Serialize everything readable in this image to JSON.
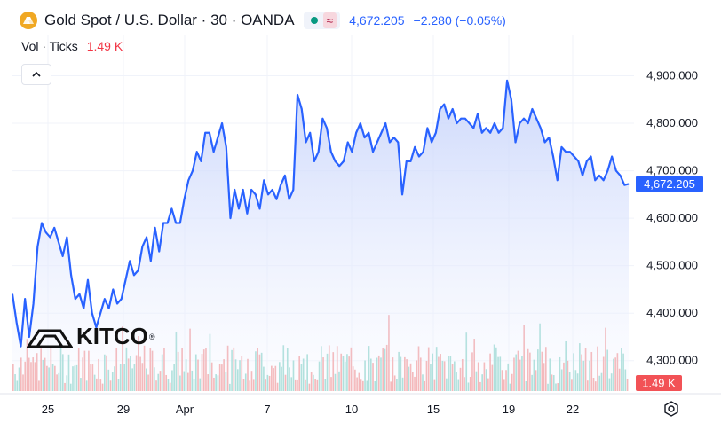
{
  "header": {
    "title": "Gold Spot / U.S. Dollar · 30 · OANDA",
    "pill_symbol": "≈",
    "price": "4,672.205",
    "change": "−2.280 (−0.05%)",
    "logo_icon": "gold-bars-icon"
  },
  "volume_legend": {
    "label": "Vol · Ticks",
    "value": "1.49 K"
  },
  "watermark": {
    "brand": "KITCO",
    "registered": "®"
  },
  "colors": {
    "line": "#2962ff",
    "area_top": "#c6d3fb",
    "area_bottom": "#f6f8ff",
    "volume_up": "#7ccfc3",
    "volume_down": "#f28b8b",
    "last_price_label": "#2962ff",
    "volume_label": "#f25256"
  },
  "chart_data": {
    "type": "line",
    "title": "Gold Spot / U.S. Dollar · 30 · OANDA",
    "xlabel": "",
    "ylabel": "",
    "x_ticks": [
      "25",
      "29",
      "Apr",
      "7",
      "10",
      "15",
      "19",
      "22"
    ],
    "y_ticks": [
      "4,300.000",
      "4,400.000",
      "4,500.000",
      "4,600.000",
      "4,700.000",
      "4,800.000",
      "4,900.000"
    ],
    "ylim": [
      4236,
      4985
    ],
    "last_price": 4672.205,
    "last_price_label": "4,672.205",
    "volume_last_label": "1.49 K",
    "y_axis_side": "right",
    "grid": true,
    "series": [
      {
        "values": [
          4440,
          4380,
          4330,
          4430,
          4350,
          4420,
          4540,
          4590,
          4570,
          4560,
          4580,
          4550,
          4520,
          4560,
          4480,
          4430,
          4440,
          4410,
          4470,
          4400,
          4370,
          4400,
          4430,
          4410,
          4450,
          4420,
          4430,
          4470,
          4510,
          4480,
          4490,
          4540,
          4560,
          4510,
          4580,
          4530,
          4590,
          4590,
          4620,
          4590,
          4590,
          4640,
          4680,
          4700,
          4740,
          4720,
          4780,
          4780,
          4740,
          4770,
          4800,
          4750,
          4600,
          4660,
          4620,
          4660,
          4610,
          4660,
          4650,
          4620,
          4680,
          4650,
          4660,
          4640,
          4670,
          4690,
          4640,
          4660,
          4860,
          4830,
          4760,
          4780,
          4720,
          4740,
          4810,
          4790,
          4740,
          4720,
          4710,
          4720,
          4760,
          4740,
          4780,
          4800,
          4770,
          4780,
          4740,
          4760,
          4780,
          4800,
          4760,
          4770,
          4760,
          4650,
          4720,
          4720,
          4750,
          4730,
          4740,
          4790,
          4760,
          4780,
          4830,
          4840,
          4810,
          4830,
          4800,
          4810,
          4810,
          4800,
          4790,
          4820,
          4780,
          4790,
          4780,
          4800,
          4780,
          4790,
          4890,
          4850,
          4760,
          4800,
          4810,
          4800,
          4830,
          4810,
          4790,
          4760,
          4770,
          4730,
          4680,
          4750,
          4740,
          4740,
          4730,
          4720,
          4690,
          4720,
          4730,
          4680,
          4690,
          4680,
          4700,
          4730,
          4700,
          4690,
          4670,
          4672.205
        ]
      }
    ],
    "volume": {
      "label": "Vol · Ticks",
      "max": 1.9
    }
  }
}
